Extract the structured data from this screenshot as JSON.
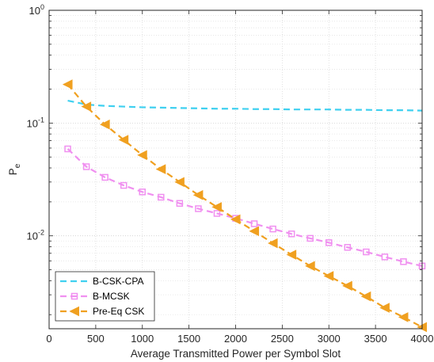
{
  "chart_data": {
    "type": "line",
    "xlabel": "Average Transmitted Power per Symbol Slot",
    "ylabel": "P",
    "ylabel_sub": "e",
    "xlim": [
      0,
      4000
    ],
    "ylim": [
      0.0015,
      1
    ],
    "yscale": "log",
    "grid": true,
    "legend_position": "bottom-left",
    "x_ticks": [
      0,
      500,
      1000,
      1500,
      2000,
      2500,
      3000,
      3500,
      4000
    ],
    "x_tick_labels": [
      "0",
      "500",
      "1000",
      "1500",
      "2000",
      "2500",
      "3000",
      "3500",
      "4000"
    ],
    "y_ticks": [
      {
        "value": 1,
        "base": "10",
        "exp": "0"
      },
      {
        "value": 0.1,
        "base": "10",
        "exp": "-1"
      },
      {
        "value": 0.01,
        "base": "10",
        "exp": "-2"
      }
    ],
    "series": [
      {
        "name": "B-CSK-CPA",
        "color": "#3fd0f0",
        "dash": "dashed",
        "marker": "none",
        "x": [
          200,
          400,
          600,
          800,
          1000,
          1200,
          1400,
          1600,
          1800,
          2000,
          2200,
          2400,
          2600,
          2800,
          3000,
          3200,
          3400,
          3600,
          3800,
          4000
        ],
        "values": [
          0.158,
          0.146,
          0.142,
          0.14,
          0.138,
          0.137,
          0.136,
          0.135,
          0.134,
          0.134,
          0.133,
          0.133,
          0.132,
          0.132,
          0.132,
          0.131,
          0.131,
          0.13,
          0.13,
          0.129
        ]
      },
      {
        "name": "B-MCSK",
        "color": "#f090f0",
        "dash": "dashed",
        "marker": "square",
        "x": [
          200,
          400,
          600,
          800,
          1000,
          1200,
          1400,
          1600,
          1800,
          2000,
          2200,
          2400,
          2600,
          2800,
          3000,
          3200,
          3400,
          3600,
          3800,
          4000
        ],
        "values": [
          0.059,
          0.041,
          0.033,
          0.028,
          0.0245,
          0.022,
          0.0194,
          0.0174,
          0.0158,
          0.0143,
          0.0128,
          0.0115,
          0.0104,
          0.0095,
          0.0087,
          0.0079,
          0.0072,
          0.0065,
          0.0059,
          0.0054
        ]
      },
      {
        "name": "Pre-Eq CSK",
        "color": "#f0a020",
        "dash": "dashed",
        "marker": "triangle-left",
        "x": [
          200,
          400,
          600,
          800,
          1000,
          1200,
          1400,
          1600,
          1800,
          2000,
          2200,
          2400,
          2600,
          2800,
          3000,
          3200,
          3400,
          3600,
          3800,
          4000
        ],
        "values": [
          0.22,
          0.14,
          0.097,
          0.071,
          0.052,
          0.039,
          0.03,
          0.023,
          0.018,
          0.014,
          0.011,
          0.0086,
          0.0068,
          0.0054,
          0.0044,
          0.0036,
          0.0029,
          0.0023,
          0.0019,
          0.00155
        ]
      }
    ]
  }
}
